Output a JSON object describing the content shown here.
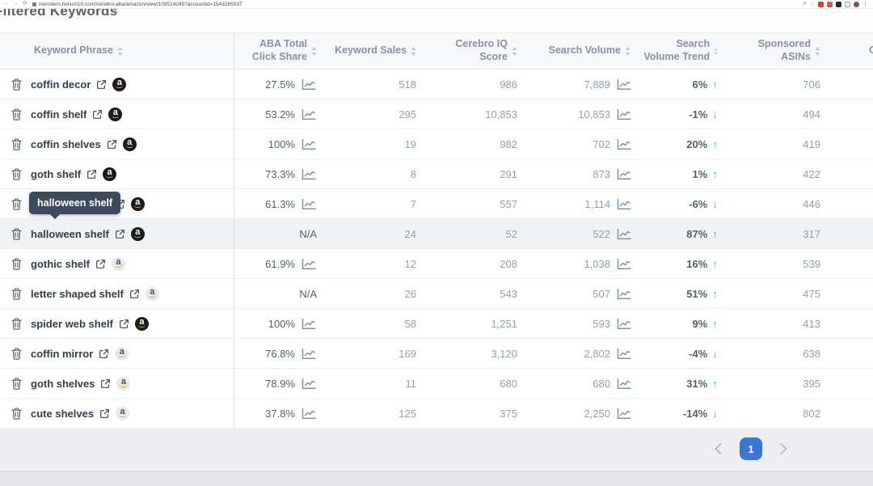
{
  "browser": {
    "url": "members.helium10.com/cerebro-aba/amazon/view/109514245?accountid=1543265037"
  },
  "page": {
    "heading": "Filtered Keywords"
  },
  "tooltip": {
    "text": "halloween shelf",
    "row_index": 4
  },
  "table": {
    "columns": [
      {
        "label": "Keyword Phrase"
      },
      {
        "label": "ABA Total Click Share"
      },
      {
        "label": "Keyword Sales"
      },
      {
        "label": "Cerebro IQ Score"
      },
      {
        "label": "Search Volume"
      },
      {
        "label": "Search Volume Trend"
      },
      {
        "label": "Sponsored ASINs"
      },
      {
        "label": "C"
      }
    ],
    "rows": [
      {
        "keyword": "coffin decor",
        "badge": "dark",
        "click_share": "27.5%",
        "click_share_chart": true,
        "keyword_sales": "518",
        "cerebro_iq_score": "986",
        "search_volume": "7,889",
        "search_volume_chart": true,
        "trend": "6%",
        "trend_dir": "up",
        "sponsored_asins": "706",
        "highlighted": false
      },
      {
        "keyword": "coffin shelf",
        "badge": "dark",
        "click_share": "53.2%",
        "click_share_chart": true,
        "keyword_sales": "295",
        "cerebro_iq_score": "10,853",
        "search_volume": "10,853",
        "search_volume_chart": true,
        "trend": "-1%",
        "trend_dir": "down",
        "sponsored_asins": "494",
        "highlighted": false
      },
      {
        "keyword": "coffin shelves",
        "badge": "dark",
        "click_share": "100%",
        "click_share_chart": true,
        "keyword_sales": "19",
        "cerebro_iq_score": "982",
        "search_volume": "702",
        "search_volume_chart": true,
        "trend": "20%",
        "trend_dir": "up",
        "sponsored_asins": "419",
        "highlighted": false
      },
      {
        "keyword": "goth shelf",
        "badge": "dark",
        "click_share": "73.3%",
        "click_share_chart": true,
        "keyword_sales": "8",
        "cerebro_iq_score": "291",
        "search_volume": "873",
        "search_volume_chart": true,
        "trend": "1%",
        "trend_dir": "up",
        "sponsored_asins": "422",
        "highlighted": false
      },
      {
        "keyword": "halloween shelf",
        "badge": "dark",
        "click_share": "61.3%",
        "click_share_chart": true,
        "keyword_sales": "7",
        "cerebro_iq_score": "557",
        "search_volume": "1,114",
        "search_volume_chart": true,
        "trend": "-6%",
        "trend_dir": "down",
        "sponsored_asins": "446",
        "highlighted": false
      },
      {
        "keyword": "halloween shelf",
        "badge": "dark",
        "click_share": "N/A",
        "click_share_chart": false,
        "keyword_sales": "24",
        "cerebro_iq_score": "52",
        "search_volume": "522",
        "search_volume_chart": true,
        "trend": "87%",
        "trend_dir": "up",
        "sponsored_asins": "317",
        "highlighted": true
      },
      {
        "keyword": "gothic shelf",
        "badge": "light",
        "click_share": "61.9%",
        "click_share_chart": true,
        "keyword_sales": "12",
        "cerebro_iq_score": "208",
        "search_volume": "1,038",
        "search_volume_chart": true,
        "trend": "16%",
        "trend_dir": "up",
        "sponsored_asins": "539",
        "highlighted": false
      },
      {
        "keyword": "letter shaped shelf",
        "badge": "light",
        "click_share": "N/A",
        "click_share_chart": false,
        "keyword_sales": "26",
        "cerebro_iq_score": "543",
        "search_volume": "507",
        "search_volume_chart": true,
        "trend": "51%",
        "trend_dir": "up",
        "sponsored_asins": "475",
        "highlighted": false
      },
      {
        "keyword": "spider web shelf",
        "badge": "dark",
        "click_share": "100%",
        "click_share_chart": true,
        "keyword_sales": "58",
        "cerebro_iq_score": "1,251",
        "search_volume": "593",
        "search_volume_chart": true,
        "trend": "9%",
        "trend_dir": "up",
        "sponsored_asins": "413",
        "highlighted": false
      },
      {
        "keyword": "coffin mirror",
        "badge": "light",
        "click_share": "76.8%",
        "click_share_chart": true,
        "keyword_sales": "169",
        "cerebro_iq_score": "3,120",
        "search_volume": "2,802",
        "search_volume_chart": true,
        "trend": "-4%",
        "trend_dir": "down",
        "sponsored_asins": "638",
        "highlighted": false
      },
      {
        "keyword": "goth shelves",
        "badge": "light",
        "click_share": "78.9%",
        "click_share_chart": true,
        "keyword_sales": "11",
        "cerebro_iq_score": "680",
        "search_volume": "680",
        "search_volume_chart": true,
        "trend": "31%",
        "trend_dir": "up",
        "sponsored_asins": "395",
        "highlighted": false
      },
      {
        "keyword": "cute shelves",
        "badge": "light",
        "click_share": "37.8%",
        "click_share_chart": true,
        "keyword_sales": "125",
        "cerebro_iq_score": "375",
        "search_volume": "2,250",
        "search_volume_chart": true,
        "trend": "-14%",
        "trend_dir": "down",
        "sponsored_asins": "802",
        "highlighted": false
      }
    ]
  },
  "pagination": {
    "current": "1"
  },
  "colors": {
    "accent_blue": "#3b76d6",
    "trend_up": "#45c4a0",
    "trend_down": "#ee7e62",
    "tooltip_bg": "#3d4a5c"
  }
}
